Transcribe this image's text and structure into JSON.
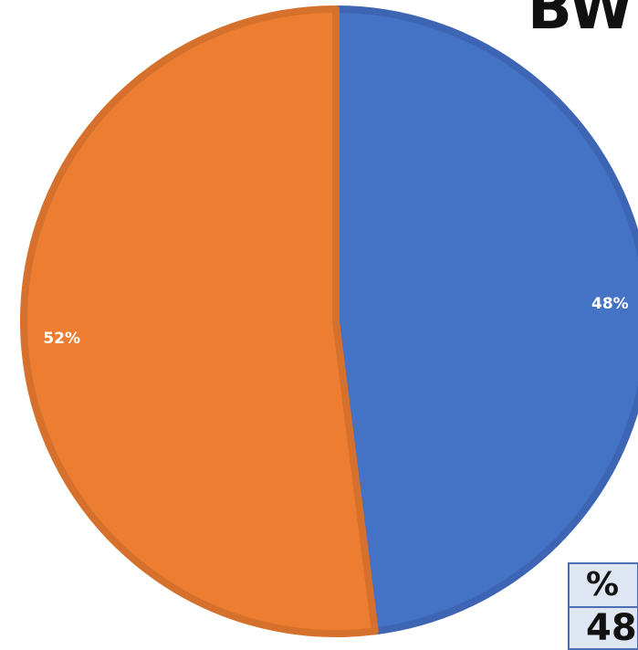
{
  "title": "BW",
  "table": {
    "header": "%",
    "value": "48"
  },
  "chart_data": {
    "type": "pie",
    "title": "BW",
    "slices": [
      {
        "label": "48%",
        "value": 48,
        "color": "#4472c4",
        "stroke": "#3d65b3"
      },
      {
        "label": "52%",
        "value": 52,
        "color": "#ed7d31",
        "stroke": "#d6712d"
      }
    ],
    "start_angle_deg": 0,
    "direction": "clockwise"
  }
}
